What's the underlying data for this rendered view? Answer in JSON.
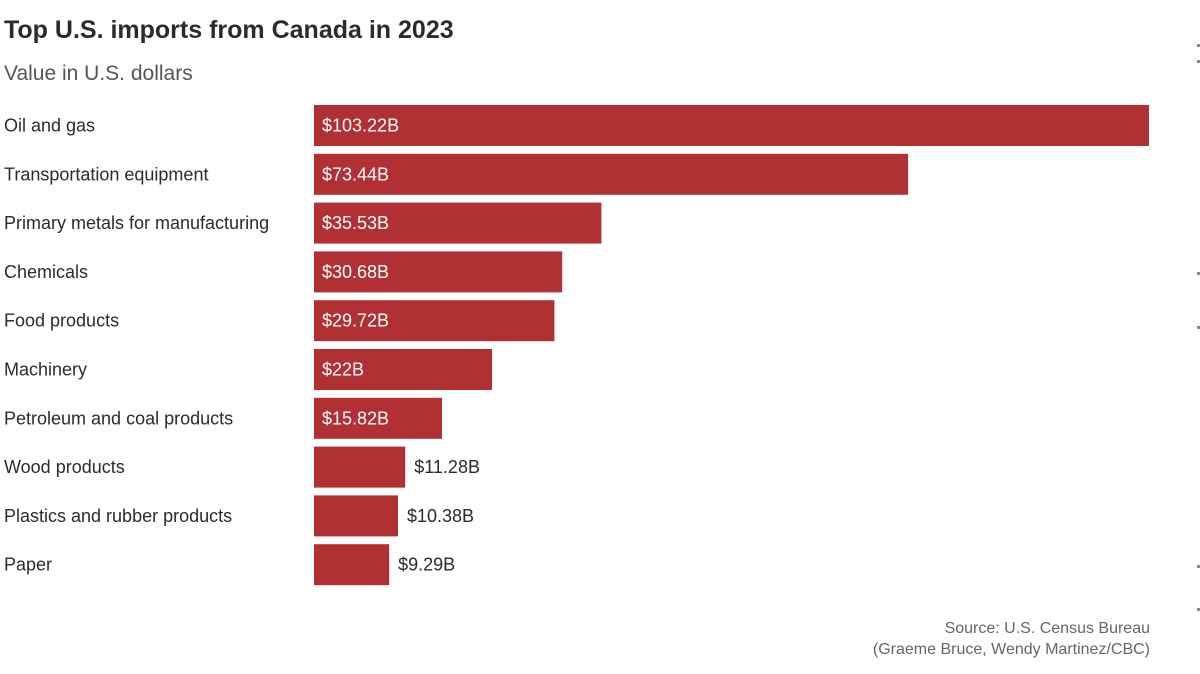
{
  "chart_data": {
    "type": "bar",
    "orientation": "horizontal",
    "title": "Top U.S. imports from Canada in 2023",
    "subtitle": "Value in U.S. dollars",
    "categories": [
      "Oil and gas",
      "Transportation equipment",
      "Primary metals for manufacturing",
      "Chemicals",
      "Food products",
      "Machinery",
      "Petroleum and coal products",
      "Wood products",
      "Plastics and rubber products",
      "Paper"
    ],
    "values": [
      103.22,
      73.44,
      35.53,
      30.68,
      29.72,
      22,
      15.82,
      11.28,
      10.38,
      9.29
    ],
    "value_labels": [
      "$103.22B",
      "$73.44B",
      "$35.53B",
      "$30.68B",
      "$29.72B",
      "$22B",
      "$15.82B",
      "$11.28B",
      "$10.38B",
      "$9.29B"
    ],
    "units": "billions of U.S. dollars",
    "xlim": [
      0,
      103.22
    ],
    "bar_color": "#b03033",
    "grid": false,
    "legend": "none"
  },
  "source": {
    "line1": "Source: U.S. Census Bureau",
    "line2": "(Graeme Bruce, Wendy Martinez/CBC)"
  }
}
